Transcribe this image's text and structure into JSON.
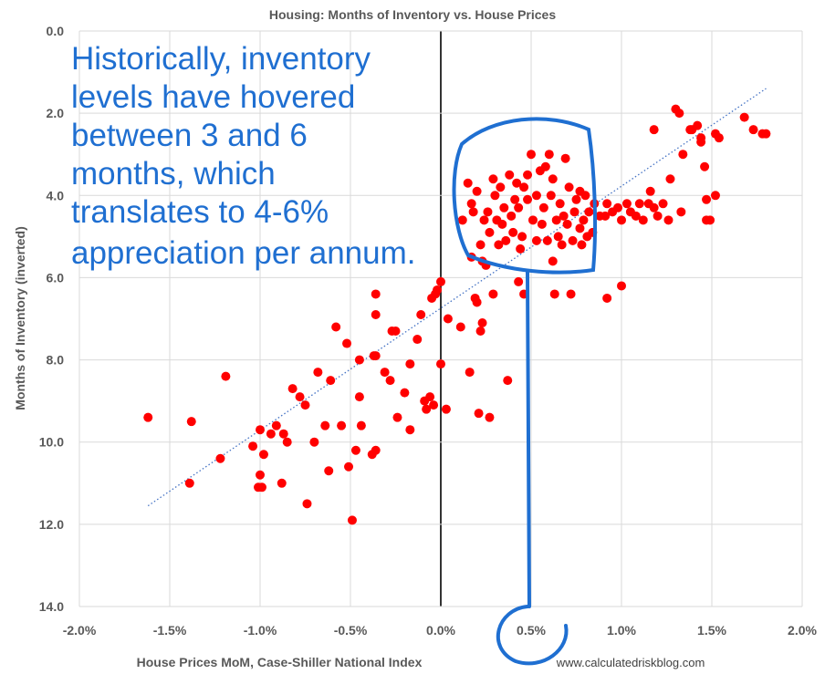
{
  "chart_data": {
    "type": "scatter",
    "title": "Housing: Months of Inventory vs. House Prices",
    "xlabel": "House Prices MoM, Case-Shiller National Index",
    "ylabel": "Months of Inventory (inverted)",
    "xlim": [
      -0.02,
      0.02
    ],
    "ylim": [
      0,
      14
    ],
    "y_inverted": true,
    "grid": true,
    "x_ticks": [
      -0.02,
      -0.015,
      -0.01,
      -0.005,
      0,
      0.005,
      0.01,
      0.015,
      0.02
    ],
    "x_tick_labels": [
      "-2.0%",
      "-1.5%",
      "-1.0%",
      "-0.5%",
      "0.0%",
      "0.5%",
      "1.0%",
      "1.5%",
      "2.0%"
    ],
    "y_ticks": [
      0,
      2,
      4,
      6,
      8,
      10,
      12,
      14
    ],
    "y_tick_labels": [
      "0.0",
      "2.0",
      "4.0",
      "6.0",
      "8.0",
      "10.0",
      "12.0",
      "14.0"
    ],
    "point_color": "#ff0000",
    "trendline": {
      "style": "dotted",
      "color": "#4472c4",
      "from": [
        -0.0162,
        11.55
      ],
      "to": [
        0.018,
        1.4
      ]
    },
    "points": [
      [
        -0.0162,
        9.4
      ],
      [
        -0.0138,
        9.5
      ],
      [
        -0.0139,
        11.0
      ],
      [
        -0.0122,
        10.4
      ],
      [
        -0.0119,
        8.4
      ],
      [
        -0.0104,
        10.1
      ],
      [
        -0.01,
        9.7
      ],
      [
        -0.0101,
        11.1
      ],
      [
        -0.01,
        10.8
      ],
      [
        -0.0099,
        11.1
      ],
      [
        -0.0098,
        10.3
      ],
      [
        -0.0094,
        9.8
      ],
      [
        -0.0091,
        9.6
      ],
      [
        -0.0088,
        11.0
      ],
      [
        -0.0087,
        9.8
      ],
      [
        -0.0085,
        10.0
      ],
      [
        -0.0082,
        8.7
      ],
      [
        -0.0078,
        8.9
      ],
      [
        -0.0075,
        9.1
      ],
      [
        -0.0074,
        11.5
      ],
      [
        -0.007,
        10.0
      ],
      [
        -0.0068,
        8.3
      ],
      [
        -0.0064,
        9.6
      ],
      [
        -0.0062,
        10.7
      ],
      [
        -0.0061,
        8.5
      ],
      [
        -0.0058,
        7.2
      ],
      [
        -0.0055,
        9.6
      ],
      [
        -0.0052,
        7.6
      ],
      [
        -0.0051,
        10.6
      ],
      [
        -0.0049,
        11.9
      ],
      [
        -0.0047,
        10.2
      ],
      [
        -0.0045,
        8.0
      ],
      [
        -0.0045,
        8.9
      ],
      [
        -0.0044,
        9.6
      ],
      [
        -0.0038,
        10.3
      ],
      [
        -0.0037,
        7.9
      ],
      [
        -0.0036,
        7.9
      ],
      [
        -0.0036,
        10.2
      ],
      [
        -0.0036,
        6.9
      ],
      [
        -0.0036,
        6.4
      ],
      [
        -0.0031,
        8.3
      ],
      [
        -0.0028,
        8.5
      ],
      [
        -0.0027,
        7.3
      ],
      [
        -0.0025,
        7.3
      ],
      [
        -0.0024,
        9.4
      ],
      [
        -0.002,
        8.8
      ],
      [
        -0.0017,
        9.7
      ],
      [
        -0.0017,
        8.1
      ],
      [
        -0.0013,
        7.5
      ],
      [
        -0.0011,
        6.9
      ],
      [
        -0.0009,
        9.0
      ],
      [
        -0.0008,
        9.2
      ],
      [
        -0.0006,
        8.9
      ],
      [
        -0.0005,
        6.5
      ],
      [
        -0.0004,
        9.1
      ],
      [
        -0.0003,
        6.4
      ],
      [
        -0.0002,
        6.3
      ],
      [
        0.0,
        6.1
      ],
      [
        0.0,
        8.1
      ],
      [
        0.0003,
        9.2
      ],
      [
        0.0004,
        7.0
      ],
      [
        0.0011,
        7.2
      ],
      [
        0.0012,
        4.6
      ],
      [
        0.0016,
        8.3
      ],
      [
        0.0017,
        5.5
      ],
      [
        0.0019,
        6.5
      ],
      [
        0.002,
        6.6
      ],
      [
        0.0021,
        9.3
      ],
      [
        0.0022,
        7.3
      ],
      [
        0.0023,
        7.1
      ],
      [
        0.0023,
        5.6
      ],
      [
        0.0025,
        5.7
      ],
      [
        0.0027,
        9.4
      ],
      [
        0.0029,
        6.4
      ],
      [
        0.0037,
        8.5
      ],
      [
        0.0043,
        6.1
      ],
      [
        0.0046,
        6.4
      ],
      [
        0.0062,
        5.6
      ],
      [
        0.0063,
        6.4
      ],
      [
        0.0072,
        6.4
      ],
      [
        0.0092,
        6.5
      ],
      [
        0.01,
        6.2
      ],
      [
        0.0058,
        3.3
      ],
      [
        0.005,
        3.0
      ],
      [
        0.006,
        3.0
      ],
      [
        0.0069,
        3.1
      ],
      [
        0.0077,
        3.9
      ],
      [
        0.008,
        4.0
      ],
      [
        0.0085,
        4.2
      ],
      [
        0.0091,
        4.5
      ],
      [
        0.0092,
        4.2
      ],
      [
        0.0095,
        4.4
      ],
      [
        0.0098,
        4.3
      ],
      [
        0.01,
        4.6
      ],
      [
        0.0103,
        4.2
      ],
      [
        0.0105,
        4.4
      ],
      [
        0.0108,
        4.5
      ],
      [
        0.011,
        4.2
      ],
      [
        0.0112,
        4.6
      ],
      [
        0.0115,
        4.2
      ],
      [
        0.0116,
        3.9
      ],
      [
        0.0118,
        4.3
      ],
      [
        0.012,
        4.5
      ],
      [
        0.0123,
        4.2
      ],
      [
        0.0126,
        4.6
      ],
      [
        0.0118,
        2.4
      ],
      [
        0.0127,
        3.6
      ],
      [
        0.013,
        1.9
      ],
      [
        0.0132,
        2.0
      ],
      [
        0.0133,
        4.4
      ],
      [
        0.0134,
        3.0
      ],
      [
        0.0138,
        2.4
      ],
      [
        0.0139,
        2.4
      ],
      [
        0.0142,
        2.3
      ],
      [
        0.0144,
        2.7
      ],
      [
        0.0144,
        2.6
      ],
      [
        0.0146,
        3.3
      ],
      [
        0.0147,
        4.1
      ],
      [
        0.0147,
        4.6
      ],
      [
        0.0149,
        4.6
      ],
      [
        0.0152,
        4.0
      ],
      [
        0.0152,
        2.5
      ],
      [
        0.0154,
        2.6
      ],
      [
        0.0168,
        2.1
      ],
      [
        0.0173,
        2.4
      ],
      [
        0.0178,
        2.5
      ],
      [
        0.018,
        2.5
      ],
      [
        0.0036,
        5.1
      ],
      [
        0.0045,
        5.0
      ],
      [
        0.0053,
        5.1
      ],
      [
        0.0065,
        5.0
      ],
      [
        0.0073,
        5.1
      ],
      [
        0.0078,
        5.2
      ],
      [
        0.0081,
        5.0
      ],
      [
        0.004,
        4.9
      ],
      [
        0.0035,
        4.3
      ],
      [
        0.0033,
        3.8
      ],
      [
        0.0042,
        3.7
      ],
      [
        0.0048,
        3.5
      ],
      [
        0.0055,
        3.4
      ],
      [
        0.0062,
        3.6
      ],
      [
        0.0071,
        3.8
      ],
      [
        0.0066,
        4.2
      ],
      [
        0.0057,
        4.3
      ],
      [
        0.0048,
        4.1
      ],
      [
        0.0039,
        4.5
      ],
      [
        0.003,
        4.0
      ],
      [
        0.0026,
        4.4
      ],
      [
        0.002,
        3.9
      ],
      [
        0.0017,
        4.2
      ],
      [
        0.0032,
        5.2
      ],
      [
        0.0044,
        5.3
      ],
      [
        0.0056,
        4.7
      ],
      [
        0.0068,
        4.5
      ],
      [
        0.0077,
        4.8
      ],
      [
        0.0084,
        4.9
      ],
      [
        0.0024,
        4.6
      ],
      [
        0.0029,
        3.6
      ],
      [
        0.0038,
        3.5
      ],
      [
        0.0061,
        4.0
      ],
      [
        0.0074,
        4.4
      ],
      [
        0.0051,
        4.6
      ],
      [
        0.0043,
        4.3
      ],
      [
        0.0022,
        5.2
      ],
      [
        0.0034,
        4.7
      ],
      [
        0.0059,
        5.1
      ],
      [
        0.007,
        4.7
      ],
      [
        0.0082,
        4.4
      ],
      [
        0.0088,
        4.5
      ],
      [
        0.0027,
        4.9
      ],
      [
        0.0046,
        3.8
      ],
      [
        0.0064,
        4.6
      ],
      [
        0.0075,
        4.1
      ],
      [
        0.0031,
        4.6
      ],
      [
        0.0053,
        4.0
      ],
      [
        0.0067,
        5.2
      ],
      [
        0.0015,
        3.7
      ],
      [
        0.0018,
        4.4
      ],
      [
        0.0041,
        4.1
      ],
      [
        0.0079,
        4.6
      ]
    ]
  },
  "annotation": {
    "lines": [
      "Historically, inventory",
      "levels have hovered",
      "between 3 and 6",
      "months, which",
      "translates to 4-6%",
      "appreciation per annum."
    ],
    "color": "#1f6fd1"
  },
  "source": "www.calculatedriskblog.com"
}
